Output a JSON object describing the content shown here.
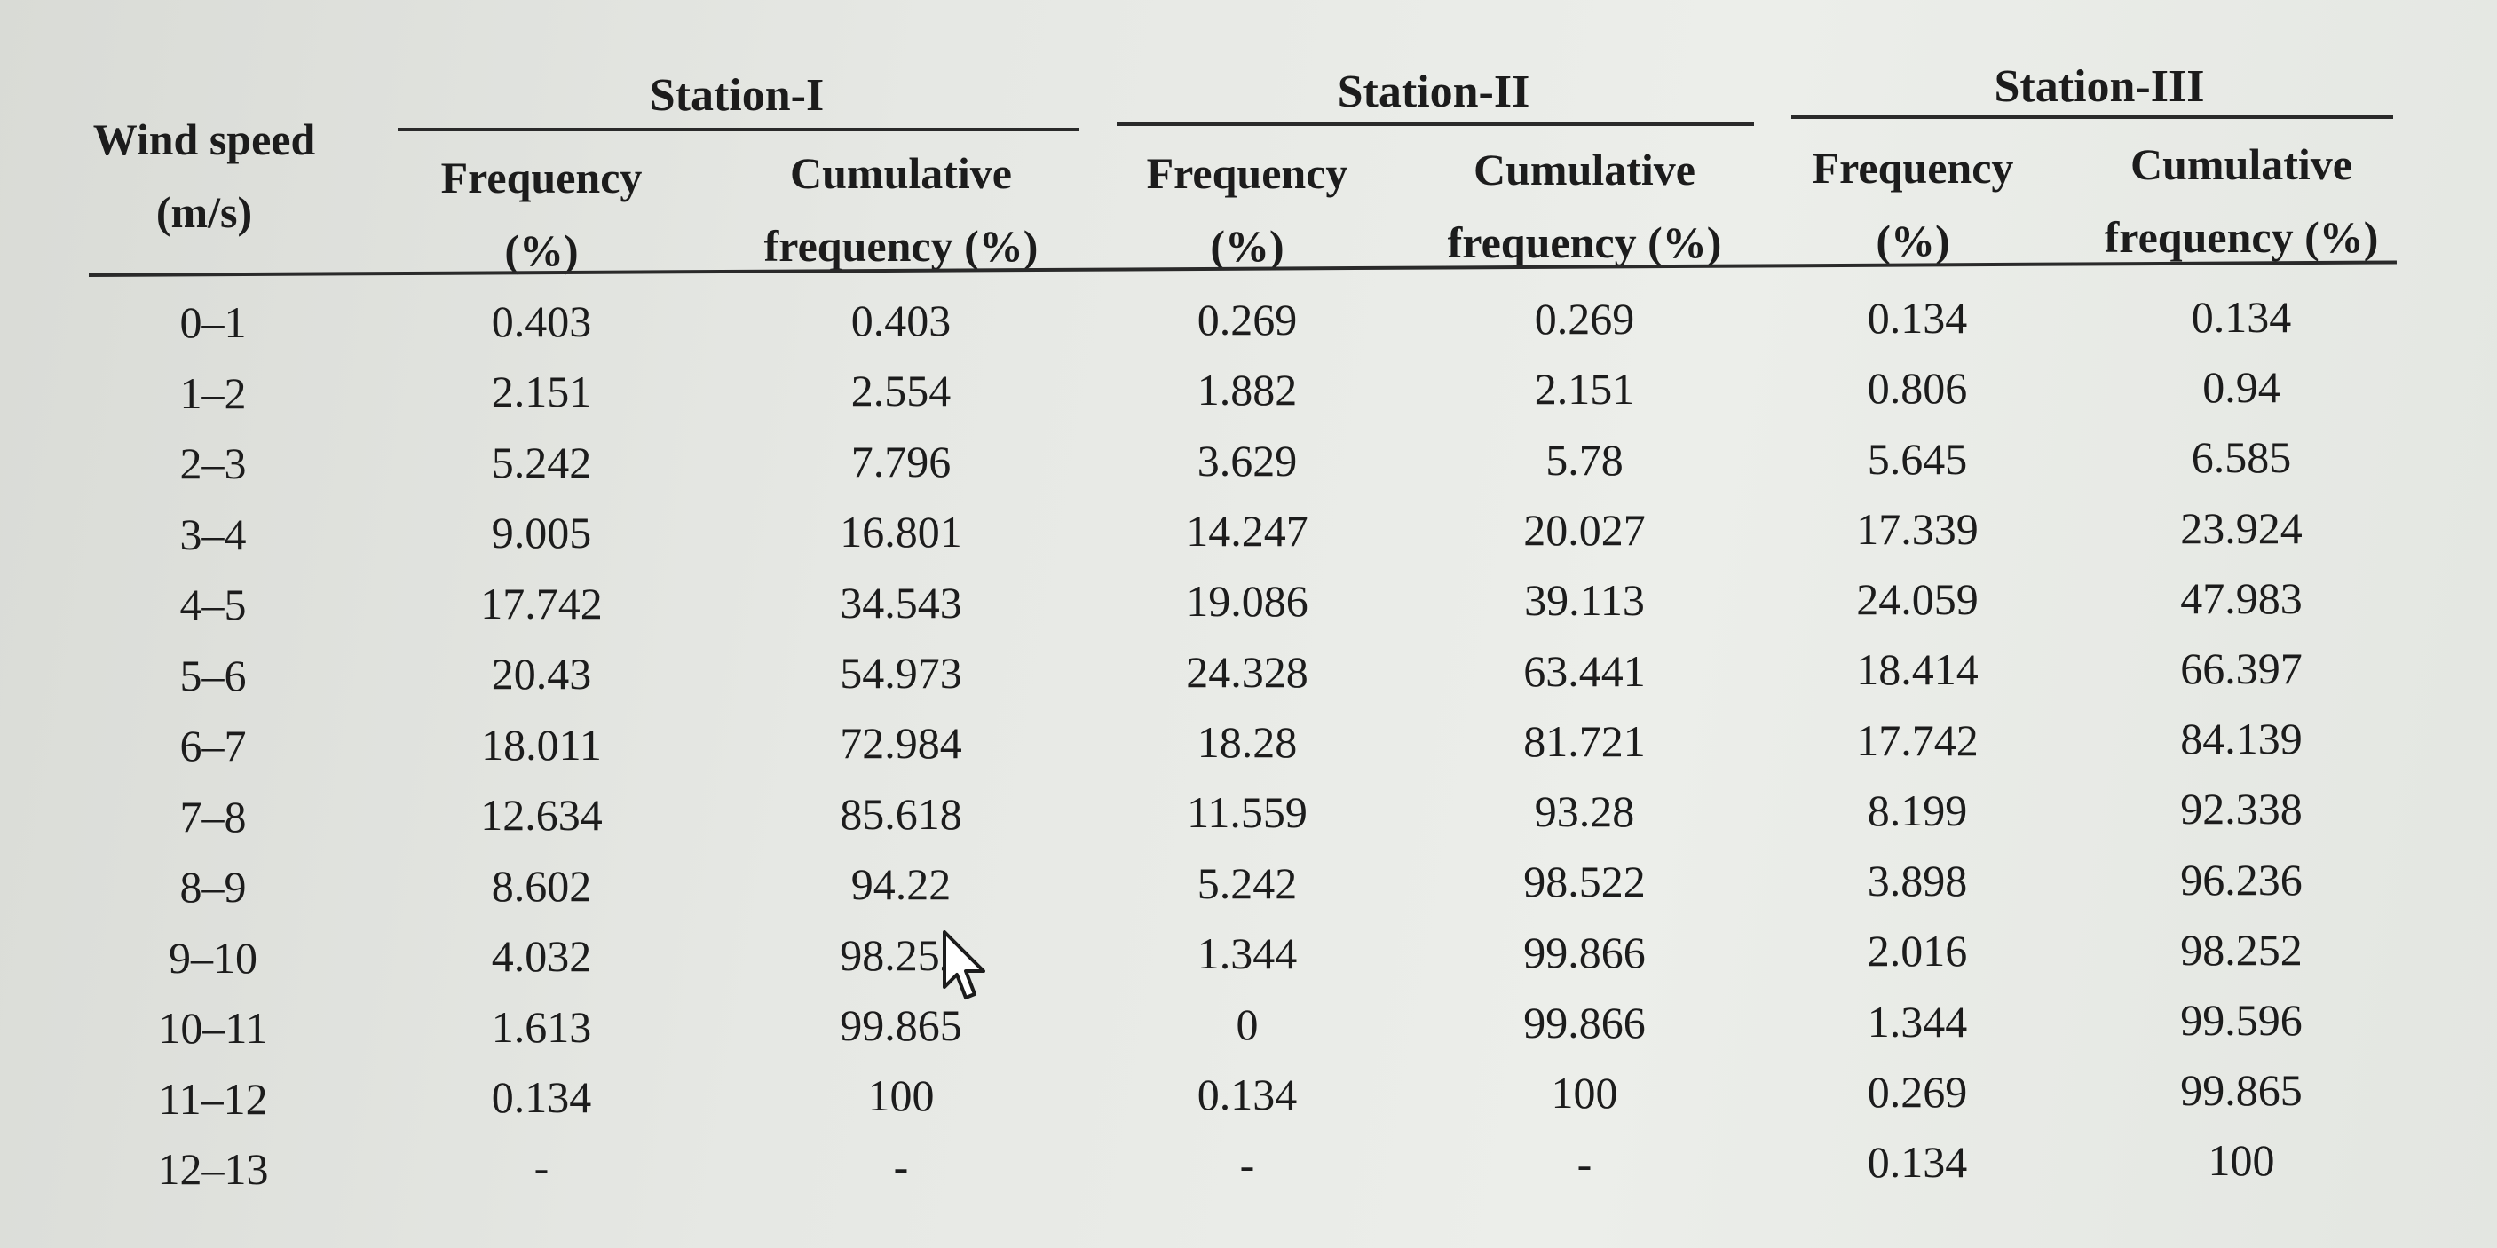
{
  "table": {
    "col_wind": {
      "line1": "Wind speed",
      "line2": "(m/s)"
    },
    "stations": [
      {
        "name": "Station-I",
        "freq": {
          "line1": "Frequency",
          "line2": "(%)"
        },
        "cum": {
          "line1": "Cumulative",
          "line2": "frequency (%)"
        }
      },
      {
        "name": "Station-II",
        "freq": {
          "line1": "Frequency",
          "line2": "(%)"
        },
        "cum": {
          "line1": "Cumulative",
          "line2": "frequency (%)"
        }
      },
      {
        "name": "Station-III",
        "freq": {
          "line1": "Frequency",
          "line2": "(%)"
        },
        "cum": {
          "line1": "Cumulative",
          "line2": "frequency (%)"
        }
      }
    ],
    "rows": [
      [
        "0–1",
        "0.403",
        "0.403",
        "0.269",
        "0.269",
        "0.134",
        "0.134"
      ],
      [
        "1–2",
        "2.151",
        "2.554",
        "1.882",
        "2.151",
        "0.806",
        "0.94"
      ],
      [
        "2–3",
        "5.242",
        "7.796",
        "3.629",
        "5.78",
        "5.645",
        "6.585"
      ],
      [
        "3–4",
        "9.005",
        "16.801",
        "14.247",
        "20.027",
        "17.339",
        "23.924"
      ],
      [
        "4–5",
        "17.742",
        "34.543",
        "19.086",
        "39.113",
        "24.059",
        "47.983"
      ],
      [
        "5–6",
        "20.43",
        "54.973",
        "24.328",
        "63.441",
        "18.414",
        "66.397"
      ],
      [
        "6–7",
        "18.011",
        "72.984",
        "18.28",
        "81.721",
        "17.742",
        "84.139"
      ],
      [
        "7–8",
        "12.634",
        "85.618",
        "11.559",
        "93.28",
        "8.199",
        "92.338"
      ],
      [
        "8–9",
        "8.602",
        "94.22",
        "5.242",
        "98.522",
        "3.898",
        "96.236"
      ],
      [
        "9–10",
        "4.032",
        "98.252",
        "1.344",
        "99.866",
        "2.016",
        "98.252"
      ],
      [
        "10–11",
        "1.613",
        "99.865",
        "0",
        "99.866",
        "1.344",
        "99.596"
      ],
      [
        "11–12",
        "0.134",
        "100",
        "0.134",
        "100",
        "0.269",
        "99.865"
      ],
      [
        "12–13",
        "-",
        "-",
        "-",
        "-",
        "0.134",
        "100"
      ]
    ]
  },
  "icons": {
    "cursor": "mouse-pointer-icon"
  }
}
